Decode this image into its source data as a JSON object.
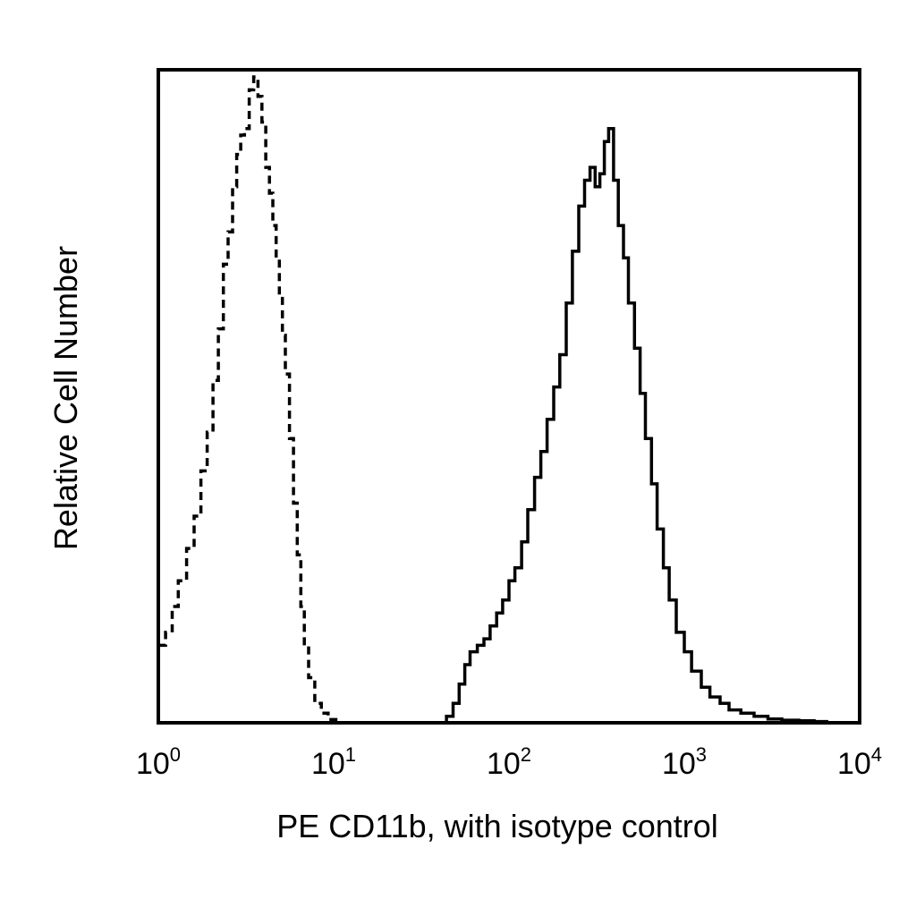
{
  "chart_data": {
    "type": "line",
    "title": "",
    "xlabel": "PE CD11b, with isotype control",
    "ylabel": "Relative Cell Number",
    "x_scale": "log",
    "xlim": [
      1,
      10000
    ],
    "ylim": [
      0,
      100
    ],
    "grid": false,
    "x_ticks": [
      {
        "value": 1,
        "base": "10",
        "exp": "0"
      },
      {
        "value": 10,
        "base": "10",
        "exp": "1"
      },
      {
        "value": 100,
        "base": "10",
        "exp": "2"
      },
      {
        "value": 1000,
        "base": "10",
        "exp": "3"
      },
      {
        "value": 10000,
        "base": "10",
        "exp": "4"
      }
    ],
    "series": [
      {
        "style": "dashed",
        "color": "#000000",
        "x": [
          1.0,
          1.1,
          1.2,
          1.3,
          1.45,
          1.6,
          1.75,
          1.9,
          2.05,
          2.2,
          2.35,
          2.5,
          2.65,
          2.8,
          2.95,
          3.1,
          3.3,
          3.5,
          3.7,
          3.9,
          4.1,
          4.3,
          4.5,
          4.7,
          4.9,
          5.1,
          5.3,
          5.6,
          5.9,
          6.2,
          6.5,
          6.8,
          7.2,
          7.8,
          8.5,
          9.3,
          10.5
        ],
        "y": [
          12,
          14,
          18,
          22,
          27,
          32,
          39,
          45,
          53,
          61,
          71,
          76,
          83,
          88,
          91,
          92,
          98,
          100,
          97,
          93,
          86,
          82,
          77,
          72,
          66,
          60,
          54,
          44,
          34,
          26,
          18,
          12,
          7,
          3,
          1.5,
          0.5,
          0
        ]
      },
      {
        "style": "solid",
        "color": "#000000",
        "x": [
          40,
          44,
          48,
          52,
          56,
          60,
          66,
          72,
          78,
          85,
          92,
          100,
          108,
          118,
          128,
          140,
          152,
          165,
          180,
          195,
          212,
          230,
          250,
          270,
          290,
          310,
          330,
          350,
          370,
          395,
          420,
          450,
          480,
          520,
          560,
          600,
          650,
          700,
          760,
          820,
          900,
          1000,
          1100,
          1250,
          1400,
          1600,
          1800,
          2100,
          2500,
          3000,
          3600,
          4500,
          5500,
          6500
        ],
        "y": [
          0,
          1,
          3,
          6,
          9,
          11,
          12,
          13,
          15,
          17,
          19,
          22,
          24,
          28,
          33,
          38,
          42,
          47,
          52,
          57,
          65,
          73,
          80,
          84,
          86,
          83,
          85,
          90,
          92,
          84,
          77,
          72,
          65,
          58,
          51,
          44,
          37,
          30,
          24,
          19,
          14,
          11,
          8,
          5.5,
          4,
          3,
          2,
          1.5,
          1,
          0.6,
          0.4,
          0.3,
          0.2,
          0
        ]
      }
    ]
  }
}
